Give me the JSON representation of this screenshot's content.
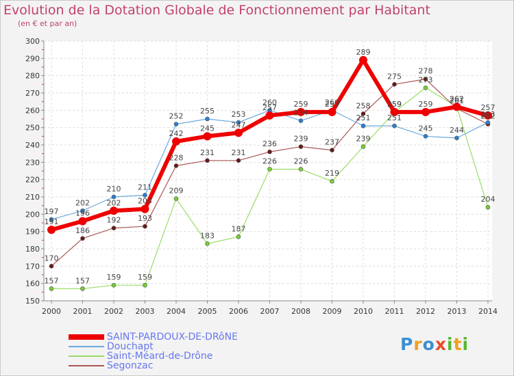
{
  "title": "Evolution de la Dotation Globale de Fonctionnement par Habitant",
  "subtitle": "(en € et par an)",
  "logo": {
    "text": "Proxiti",
    "letters": [
      {
        "ch": "P",
        "color": "#3a8fd6"
      },
      {
        "ch": "r",
        "color": "#f0a020"
      },
      {
        "ch": "o",
        "color": "#3a8fd6"
      },
      {
        "ch": "x",
        "color": "#e84a2a"
      },
      {
        "ch": "i",
        "color": "#58b830"
      },
      {
        "ch": "t",
        "color": "#f0a020"
      },
      {
        "ch": "i",
        "color": "#58b830"
      }
    ]
  },
  "chart_data": {
    "type": "line",
    "title": "Evolution de la Dotation Globale de Fonctionnement par Habitant",
    "subtitle": "(en € et par an)",
    "xlabel": "",
    "ylabel": "",
    "ylim": [
      150,
      300
    ],
    "y_ticks": [
      150,
      160,
      170,
      180,
      190,
      200,
      210,
      220,
      230,
      240,
      250,
      260,
      270,
      280,
      290,
      300
    ],
    "grid": true,
    "categories": [
      "2000",
      "2001",
      "2002",
      "2003",
      "2004",
      "2005",
      "2006",
      "2007",
      "2008",
      "2009",
      "2010",
      "2011",
      "2012",
      "2013",
      "2014"
    ],
    "series": [
      {
        "name": "Saint-Méard-de-Drône",
        "color": "#99dd66",
        "marker": "#77cc33",
        "width": 1.2,
        "values": [
          157,
          157,
          159,
          159,
          209,
          183,
          187,
          226,
          226,
          219,
          239,
          259,
          273,
          262,
          204
        ],
        "labels": [
          "157",
          "157",
          "159",
          "159",
          "209",
          "183",
          "187",
          "226",
          "226",
          "219",
          "239",
          "259",
          "273",
          "262",
          "204"
        ]
      },
      {
        "name": "Segonzac",
        "color": "#aa5555",
        "marker": "#661a1a",
        "width": 1.2,
        "values": [
          170,
          186,
          192,
          193,
          228,
          231,
          231,
          236,
          239,
          237,
          258,
          275,
          278,
          261,
          252
        ],
        "labels": [
          "170",
          "186",
          "192",
          "193",
          "228",
          "231",
          "231",
          "236",
          "239",
          "237",
          "258",
          "275",
          "278",
          "261",
          "252"
        ]
      },
      {
        "name": "Douchapt",
        "color": "#6aa9de",
        "marker": "#2a7fd0",
        "width": 1.2,
        "values": [
          197,
          202,
          210,
          211,
          252,
          255,
          253,
          260,
          254,
          260,
          251,
          251,
          245,
          244,
          253
        ],
        "labels": [
          "197",
          "202",
          "210",
          "211",
          "252",
          "255",
          "253",
          "260",
          "254",
          "260",
          "251",
          "251",
          "245",
          "244",
          "253"
        ]
      },
      {
        "name": "SAINT-PARDOUX-DE-DRôNE",
        "color": "#ee0000",
        "marker": "#ee0000",
        "width": 6,
        "values": [
          191,
          196,
          202,
          203,
          242,
          245,
          247,
          257,
          259,
          259,
          289,
          259,
          259,
          262,
          257
        ],
        "labels": [
          "191",
          "196",
          "202",
          "203",
          "242",
          "245",
          "247",
          "257",
          "259",
          "259",
          "289",
          "259",
          "259",
          "262",
          "257"
        ]
      }
    ],
    "legend": [
      {
        "name": "SAINT-PARDOUX-DE-DRôNE",
        "color": "#ee0000"
      },
      {
        "name": "Douchapt",
        "color": "#6aa9de"
      },
      {
        "name": "Saint-Méard-de-Drône",
        "color": "#99dd66"
      },
      {
        "name": "Segonzac",
        "color": "#aa5555"
      }
    ]
  }
}
